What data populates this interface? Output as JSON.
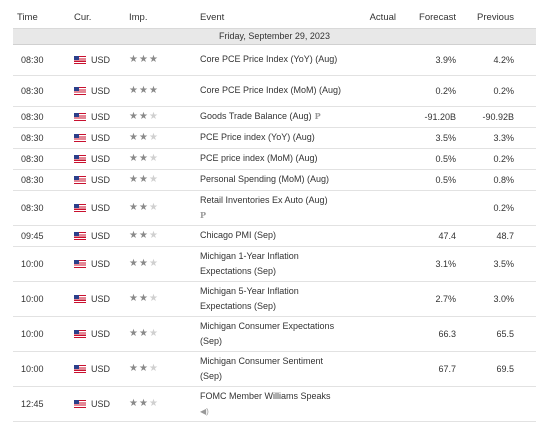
{
  "header": {
    "time": "Time",
    "currency": "Cur.",
    "importance": "Imp.",
    "event": "Event",
    "actual": "Actual",
    "forecast": "Forecast",
    "previous": "Previous"
  },
  "date_label": "Friday, September 29, 2023",
  "rows": [
    {
      "time": "08:30",
      "cur": "USD",
      "stars": 3,
      "event": "Core PCE Price Index (YoY) (Aug)",
      "actual": "",
      "forecast": "3.9%",
      "previous": "4.2%"
    },
    {
      "time": "08:30",
      "cur": "USD",
      "stars": 3,
      "event": "Core PCE Price Index (MoM) (Aug)",
      "actual": "",
      "forecast": "0.2%",
      "previous": "0.2%"
    },
    {
      "time": "08:30",
      "cur": "USD",
      "stars": 2,
      "event": "Goods Trade Balance (Aug)",
      "badge": "P",
      "actual": "",
      "forecast": "-91.20B",
      "previous": "-90.92B"
    },
    {
      "time": "08:30",
      "cur": "USD",
      "stars": 2,
      "event": "PCE Price index (YoY) (Aug)",
      "actual": "",
      "forecast": "3.5%",
      "previous": "3.3%"
    },
    {
      "time": "08:30",
      "cur": "USD",
      "stars": 2,
      "event": "PCE price index (MoM) (Aug)",
      "actual": "",
      "forecast": "0.5%",
      "previous": "0.2%"
    },
    {
      "time": "08:30",
      "cur": "USD",
      "stars": 2,
      "event": "Personal Spending (MoM) (Aug)",
      "actual": "",
      "forecast": "0.5%",
      "previous": "0.8%"
    },
    {
      "time": "08:30",
      "cur": "USD",
      "stars": 2,
      "event": "Retail Inventories Ex Auto (Aug)",
      "badge_line2": "P",
      "actual": "",
      "forecast": "",
      "previous": "0.2%"
    },
    {
      "time": "09:45",
      "cur": "USD",
      "stars": 2,
      "event": "Chicago PMI (Sep)",
      "actual": "",
      "forecast": "47.4",
      "previous": "48.7"
    },
    {
      "time": "10:00",
      "cur": "USD",
      "stars": 2,
      "event": "Michigan 1-Year Inflation Expectations (Sep)",
      "actual": "",
      "forecast": "3.1%",
      "previous": "3.5%"
    },
    {
      "time": "10:00",
      "cur": "USD",
      "stars": 2,
      "event": "Michigan 5-Year Inflation Expectations (Sep)",
      "actual": "",
      "forecast": "2.7%",
      "previous": "3.0%"
    },
    {
      "time": "10:00",
      "cur": "USD",
      "stars": 2,
      "event": "Michigan Consumer Expectations (Sep)",
      "actual": "",
      "forecast": "66.3",
      "previous": "65.5"
    },
    {
      "time": "10:00",
      "cur": "USD",
      "stars": 2,
      "event": "Michigan Consumer Sentiment (Sep)",
      "actual": "",
      "forecast": "67.7",
      "previous": "69.5"
    },
    {
      "time": "12:45",
      "cur": "USD",
      "stars": 2,
      "event": "FOMC Member Williams Speaks",
      "speech": true,
      "actual": "",
      "forecast": "",
      "previous": ""
    }
  ],
  "icons": {
    "flag": "us-flag-icon",
    "star": "star-icon",
    "preliminary": "preliminary-badge-icon",
    "speech": "speaker-icon"
  }
}
